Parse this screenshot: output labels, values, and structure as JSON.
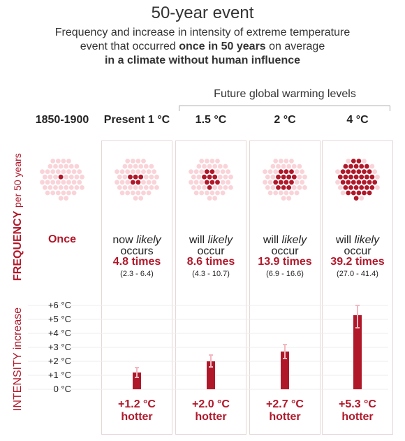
{
  "title": "50-year event",
  "subtitle_line1": "Frequency and increase in intensity of extreme temperature",
  "subtitle_line2_a": "event that occurred ",
  "subtitle_line2_b": "once in 50 years",
  "subtitle_line2_c": " on average",
  "subtitle_line3": "in a climate without human influence",
  "group_label": "Future global warming levels",
  "frequency_axis_label": "FREQUENCY",
  "frequency_axis_unit": "per 50 years",
  "intensity_axis_label": "INTENSITY increase",
  "colors": {
    "accent": "#b0182a",
    "dot_light": "#f9d3d8",
    "dot_dark": "#b0182a"
  },
  "chart_data": {
    "type": "bar",
    "categories": [
      "1850-1900",
      "Present 1 °C",
      "1.5 °C",
      "2 °C",
      "4 °C"
    ],
    "frequency": {
      "prefix": [
        "",
        "now",
        "will",
        "will",
        "will"
      ],
      "likely": [
        "",
        "likely",
        "likely",
        "likely",
        "likely"
      ],
      "verb": [
        "",
        "occurs",
        "occur",
        "occur",
        "occur"
      ],
      "once_label": "Once",
      "values": [
        1,
        4.8,
        8.6,
        13.9,
        39.2
      ],
      "labels": [
        "Once",
        "4.8 times",
        "8.6 times",
        "13.9 times",
        "39.2 times"
      ],
      "ranges": [
        "",
        "(2.3 - 6.4)",
        "(4.3 - 10.7)",
        "(6.9 - 16.6)",
        "(27.0 - 41.4)"
      ],
      "total_dots": 50
    },
    "intensity": {
      "values": [
        0,
        1.2,
        2.0,
        2.7,
        5.3
      ],
      "error_low": [
        null,
        0.85,
        1.6,
        2.2,
        4.4
      ],
      "error_high": [
        null,
        1.55,
        2.45,
        3.2,
        6.0
      ],
      "labels": [
        "",
        "+1.2 °C",
        "+2.0 °C",
        "+2.7 °C",
        "+5.3 °C"
      ],
      "suffix": "hotter",
      "ylim": [
        0,
        6
      ],
      "yticks": [
        "0 °C",
        "+1 °C",
        "+2 °C",
        "+3 °C",
        "+4 °C",
        "+5 °C",
        "+6 °C"
      ],
      "grid": true
    }
  }
}
